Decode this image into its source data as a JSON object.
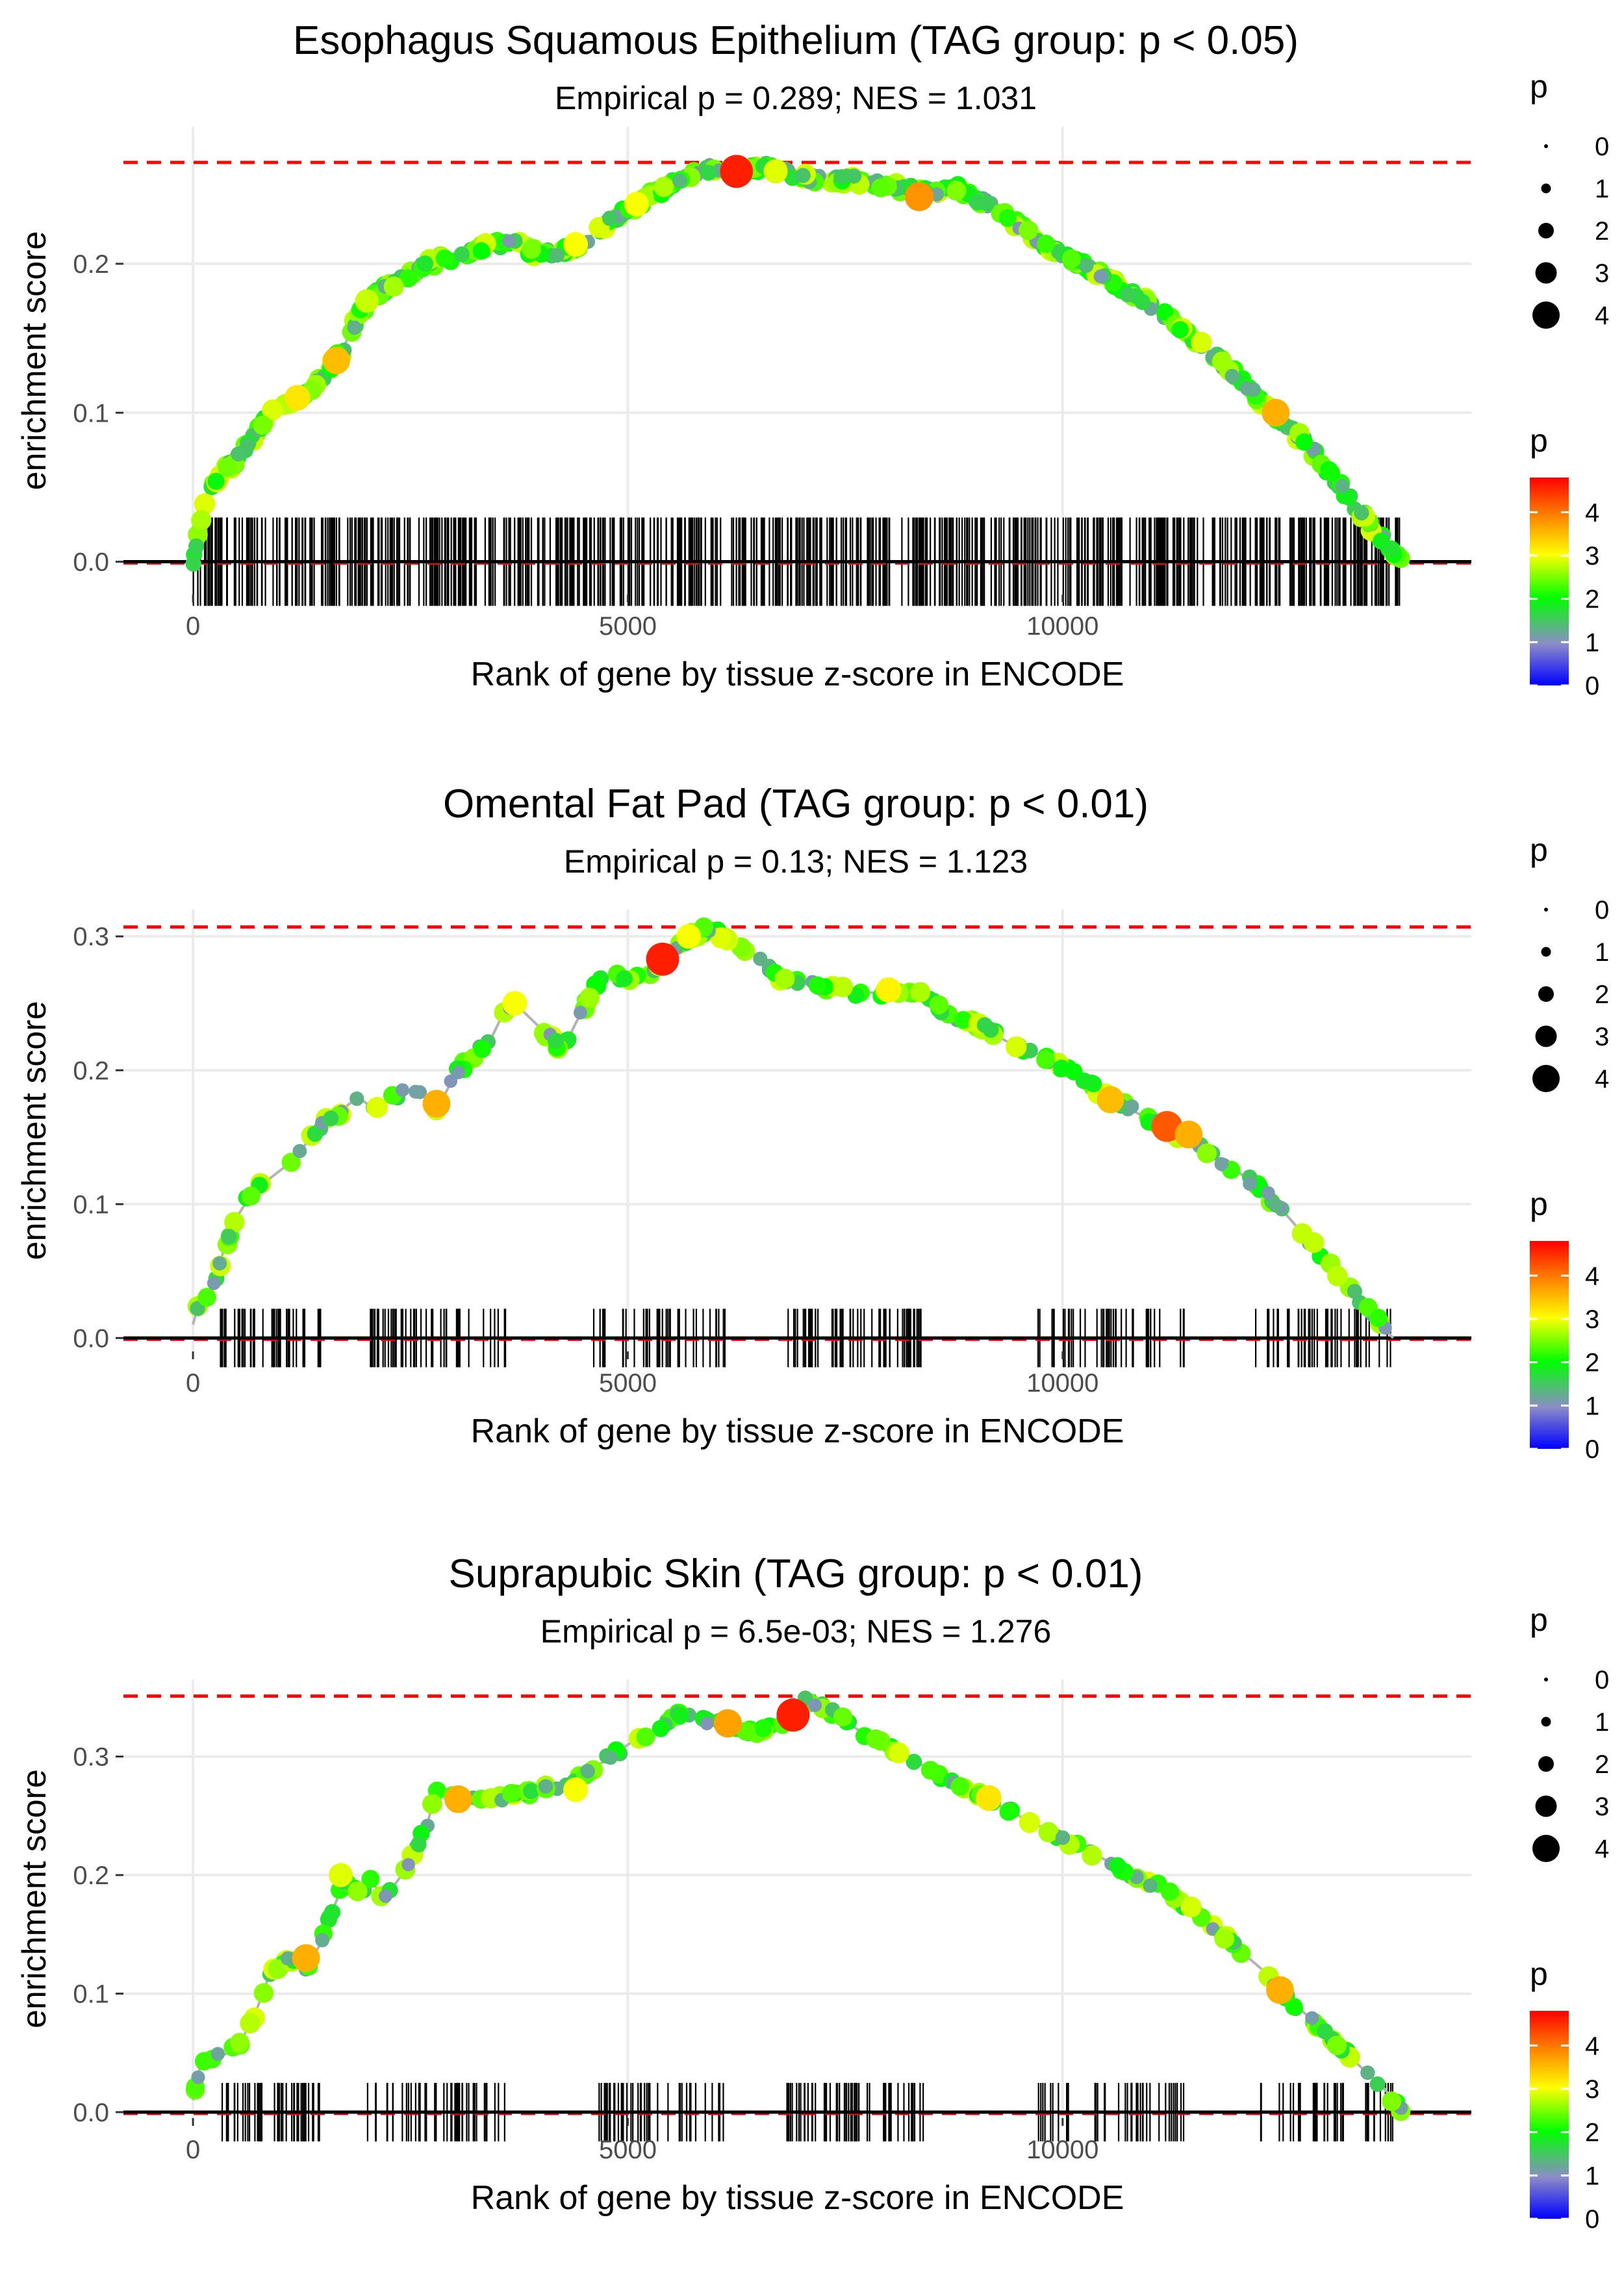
{
  "colors": {
    "background": "#ffffff",
    "grid": "#ebebeb",
    "zero_line": "#000000",
    "max_line": "#ff0000",
    "path_line": "#b3b3b3",
    "tick_text": "#4d4d4d",
    "gradient": [
      "#0000ff",
      "#8c8cc8",
      "#00ff00",
      "#ffff00",
      "#ff8000",
      "#ff0000"
    ]
  },
  "shared": {
    "xlabel": "Rank of gene by tissue z-score in ENCODE",
    "ylabel": "enrichment score",
    "xticks": [
      0,
      5000,
      10000
    ],
    "xtick_labels": [
      "0",
      "5000",
      "10000"
    ],
    "xlim": [
      -800,
      14700
    ],
    "size_legend": {
      "title": "p",
      "labels": [
        "0",
        "1",
        "2",
        "3",
        "4"
      ]
    },
    "color_legend": {
      "title": "p",
      "labels": [
        "4",
        "3",
        "2",
        "1",
        "0"
      ],
      "range": [
        0,
        4.8
      ]
    }
  },
  "chart_data": [
    {
      "type": "line",
      "title": "Esophagus Squamous Epithelium (TAG group: p < 0.05)",
      "subtitle": "Empirical p = 0.289; NES = 1.031",
      "max_es": 0.268,
      "ylim": [
        -0.022,
        0.292
      ],
      "yticks": [
        0,
        0.1,
        0.2
      ],
      "ytick_labels": [
        "0.0",
        "0.1",
        "0.2"
      ],
      "n_genes": 13900,
      "rug_density": "dense",
      "curve": [
        [
          0,
          0.0
        ],
        [
          60,
          0.02
        ],
        [
          150,
          0.045
        ],
        [
          300,
          0.058
        ],
        [
          500,
          0.068
        ],
        [
          700,
          0.085
        ],
        [
          900,
          0.1
        ],
        [
          1100,
          0.105
        ],
        [
          1300,
          0.112
        ],
        [
          1500,
          0.125
        ],
        [
          1700,
          0.14
        ],
        [
          1900,
          0.165
        ],
        [
          2100,
          0.18
        ],
        [
          2400,
          0.19
        ],
        [
          2700,
          0.2
        ],
        [
          3000,
          0.205
        ],
        [
          3300,
          0.21
        ],
        [
          3600,
          0.215
        ],
        [
          3900,
          0.208
        ],
        [
          4200,
          0.207
        ],
        [
          4500,
          0.215
        ],
        [
          4800,
          0.23
        ],
        [
          5100,
          0.24
        ],
        [
          5400,
          0.25
        ],
        [
          5700,
          0.26
        ],
        [
          6000,
          0.265
        ],
        [
          6300,
          0.262
        ],
        [
          6600,
          0.265
        ],
        [
          7000,
          0.258
        ],
        [
          7400,
          0.257
        ],
        [
          7800,
          0.255
        ],
        [
          8200,
          0.25
        ],
        [
          8500,
          0.248
        ],
        [
          8800,
          0.25
        ],
        [
          9200,
          0.238
        ],
        [
          9600,
          0.222
        ],
        [
          10000,
          0.205
        ],
        [
          10400,
          0.195
        ],
        [
          10800,
          0.18
        ],
        [
          11200,
          0.165
        ],
        [
          11600,
          0.145
        ],
        [
          12000,
          0.125
        ],
        [
          12400,
          0.1
        ],
        [
          12800,
          0.08
        ],
        [
          13200,
          0.05
        ],
        [
          13600,
          0.02
        ],
        [
          13900,
          0.0
        ]
      ],
      "highlights": [
        [
          6250,
          0.262,
          4.6
        ],
        [
          8350,
          0.245,
          3.8
        ],
        [
          1650,
          0.135,
          3.5
        ],
        [
          1200,
          0.11,
          3.2
        ],
        [
          12450,
          0.1,
          3.6
        ],
        [
          4400,
          0.213,
          3.0
        ],
        [
          5100,
          0.24,
          3.0
        ],
        [
          6700,
          0.262,
          2.9
        ],
        [
          2000,
          0.175,
          2.8
        ]
      ]
    },
    {
      "type": "line",
      "title": "Omental Fat Pad (TAG group: p < 0.01)",
      "subtitle": "Empirical p = 0.13; NES = 1.123",
      "max_es": 0.307,
      "ylim": [
        -0.01,
        0.32
      ],
      "yticks": [
        0,
        0.1,
        0.2,
        0.3
      ],
      "ytick_labels": [
        "0.0",
        "0.1",
        "0.2",
        "0.3"
      ],
      "n_genes": 13800,
      "rug_density": "medium",
      "curve": [
        [
          0,
          0.01
        ],
        [
          100,
          0.035
        ],
        [
          200,
          0.03
        ],
        [
          350,
          0.065
        ],
        [
          500,
          0.09
        ],
        [
          700,
          0.11
        ],
        [
          900,
          0.12
        ],
        [
          1100,
          0.13
        ],
        [
          1300,
          0.145
        ],
        [
          1500,
          0.16
        ],
        [
          1700,
          0.17
        ],
        [
          1900,
          0.18
        ],
        [
          2100,
          0.17
        ],
        [
          2300,
          0.18
        ],
        [
          2500,
          0.185
        ],
        [
          2700,
          0.18
        ],
        [
          2800,
          0.17
        ],
        [
          3000,
          0.195
        ],
        [
          3200,
          0.21
        ],
        [
          3400,
          0.22
        ],
        [
          3550,
          0.24
        ],
        [
          3700,
          0.25
        ],
        [
          4100,
          0.225
        ],
        [
          4250,
          0.215
        ],
        [
          4400,
          0.235
        ],
        [
          4600,
          0.26
        ],
        [
          4750,
          0.27
        ],
        [
          5000,
          0.27
        ],
        [
          5200,
          0.27
        ],
        [
          5400,
          0.28
        ],
        [
          5550,
          0.29
        ],
        [
          5700,
          0.3
        ],
        [
          5950,
          0.307
        ],
        [
          6200,
          0.295
        ],
        [
          6400,
          0.29
        ],
        [
          6700,
          0.27
        ],
        [
          7000,
          0.265
        ],
        [
          7400,
          0.26
        ],
        [
          7800,
          0.258
        ],
        [
          8100,
          0.255
        ],
        [
          8300,
          0.26
        ],
        [
          8600,
          0.245
        ],
        [
          9000,
          0.235
        ],
        [
          9400,
          0.22
        ],
        [
          9800,
          0.21
        ],
        [
          10200,
          0.195
        ],
        [
          10500,
          0.18
        ],
        [
          10800,
          0.17
        ],
        [
          11100,
          0.16
        ],
        [
          11400,
          0.148
        ],
        [
          11700,
          0.138
        ],
        [
          12000,
          0.125
        ],
        [
          12300,
          0.11
        ],
        [
          12600,
          0.09
        ],
        [
          13000,
          0.06
        ],
        [
          13400,
          0.03
        ],
        [
          13800,
          0.0
        ]
      ],
      "highlights": [
        [
          5400,
          0.283,
          4.6
        ],
        [
          11200,
          0.158,
          4.2
        ],
        [
          2800,
          0.175,
          3.6
        ],
        [
          10550,
          0.178,
          3.5
        ],
        [
          11450,
          0.152,
          3.6
        ],
        [
          8000,
          0.26,
          3.1
        ],
        [
          5700,
          0.3,
          3.0
        ],
        [
          3700,
          0.25,
          3.0
        ]
      ]
    },
    {
      "type": "line",
      "title": "Suprapubic Skin (TAG group: p < 0.01)",
      "subtitle": "Empirical p = 6.5e-03; NES = 1.276",
      "max_es": 0.351,
      "ylim": [
        -0.005,
        0.365
      ],
      "yticks": [
        0,
        0.1,
        0.2,
        0.3
      ],
      "ytick_labels": [
        "0.0",
        "0.1",
        "0.2",
        "0.3"
      ],
      "n_genes": 13900,
      "rug_density": "medium",
      "curve": [
        [
          0,
          0.01
        ],
        [
          100,
          0.045
        ],
        [
          250,
          0.045
        ],
        [
          400,
          0.05
        ],
        [
          550,
          0.06
        ],
        [
          700,
          0.08
        ],
        [
          850,
          0.11
        ],
        [
          1000,
          0.125
        ],
        [
          1150,
          0.13
        ],
        [
          1300,
          0.12
        ],
        [
          1450,
          0.14
        ],
        [
          1600,
          0.17
        ],
        [
          1750,
          0.195
        ],
        [
          1900,
          0.185
        ],
        [
          2050,
          0.195
        ],
        [
          2200,
          0.18
        ],
        [
          2400,
          0.2
        ],
        [
          2550,
          0.22
        ],
        [
          2700,
          0.245
        ],
        [
          2800,
          0.27
        ],
        [
          3000,
          0.265
        ],
        [
          3300,
          0.262
        ],
        [
          3600,
          0.265
        ],
        [
          3900,
          0.27
        ],
        [
          4200,
          0.275
        ],
        [
          4500,
          0.285
        ],
        [
          4800,
          0.3
        ],
        [
          5100,
          0.315
        ],
        [
          5400,
          0.325
        ],
        [
          5650,
          0.34
        ],
        [
          5900,
          0.33
        ],
        [
          6200,
          0.325
        ],
        [
          6500,
          0.32
        ],
        [
          6800,
          0.33
        ],
        [
          7000,
          0.351
        ],
        [
          7300,
          0.34
        ],
        [
          7700,
          0.32
        ],
        [
          8200,
          0.3
        ],
        [
          8700,
          0.28
        ],
        [
          9100,
          0.265
        ],
        [
          9500,
          0.25
        ],
        [
          9900,
          0.235
        ],
        [
          10300,
          0.22
        ],
        [
          10700,
          0.205
        ],
        [
          11100,
          0.19
        ],
        [
          11500,
          0.17
        ],
        [
          11900,
          0.145
        ],
        [
          12300,
          0.12
        ],
        [
          12600,
          0.095
        ],
        [
          13000,
          0.07
        ],
        [
          13400,
          0.04
        ],
        [
          13700,
          0.02
        ],
        [
          13900,
          0.0
        ]
      ],
      "highlights": [
        [
          6900,
          0.335,
          4.6
        ],
        [
          1300,
          0.13,
          3.6
        ],
        [
          6150,
          0.328,
          3.7
        ],
        [
          3050,
          0.264,
          3.6
        ],
        [
          12500,
          0.103,
          3.6
        ],
        [
          9150,
          0.265,
          3.2
        ],
        [
          4400,
          0.272,
          3.0
        ],
        [
          1700,
          0.2,
          2.9
        ]
      ]
    }
  ]
}
